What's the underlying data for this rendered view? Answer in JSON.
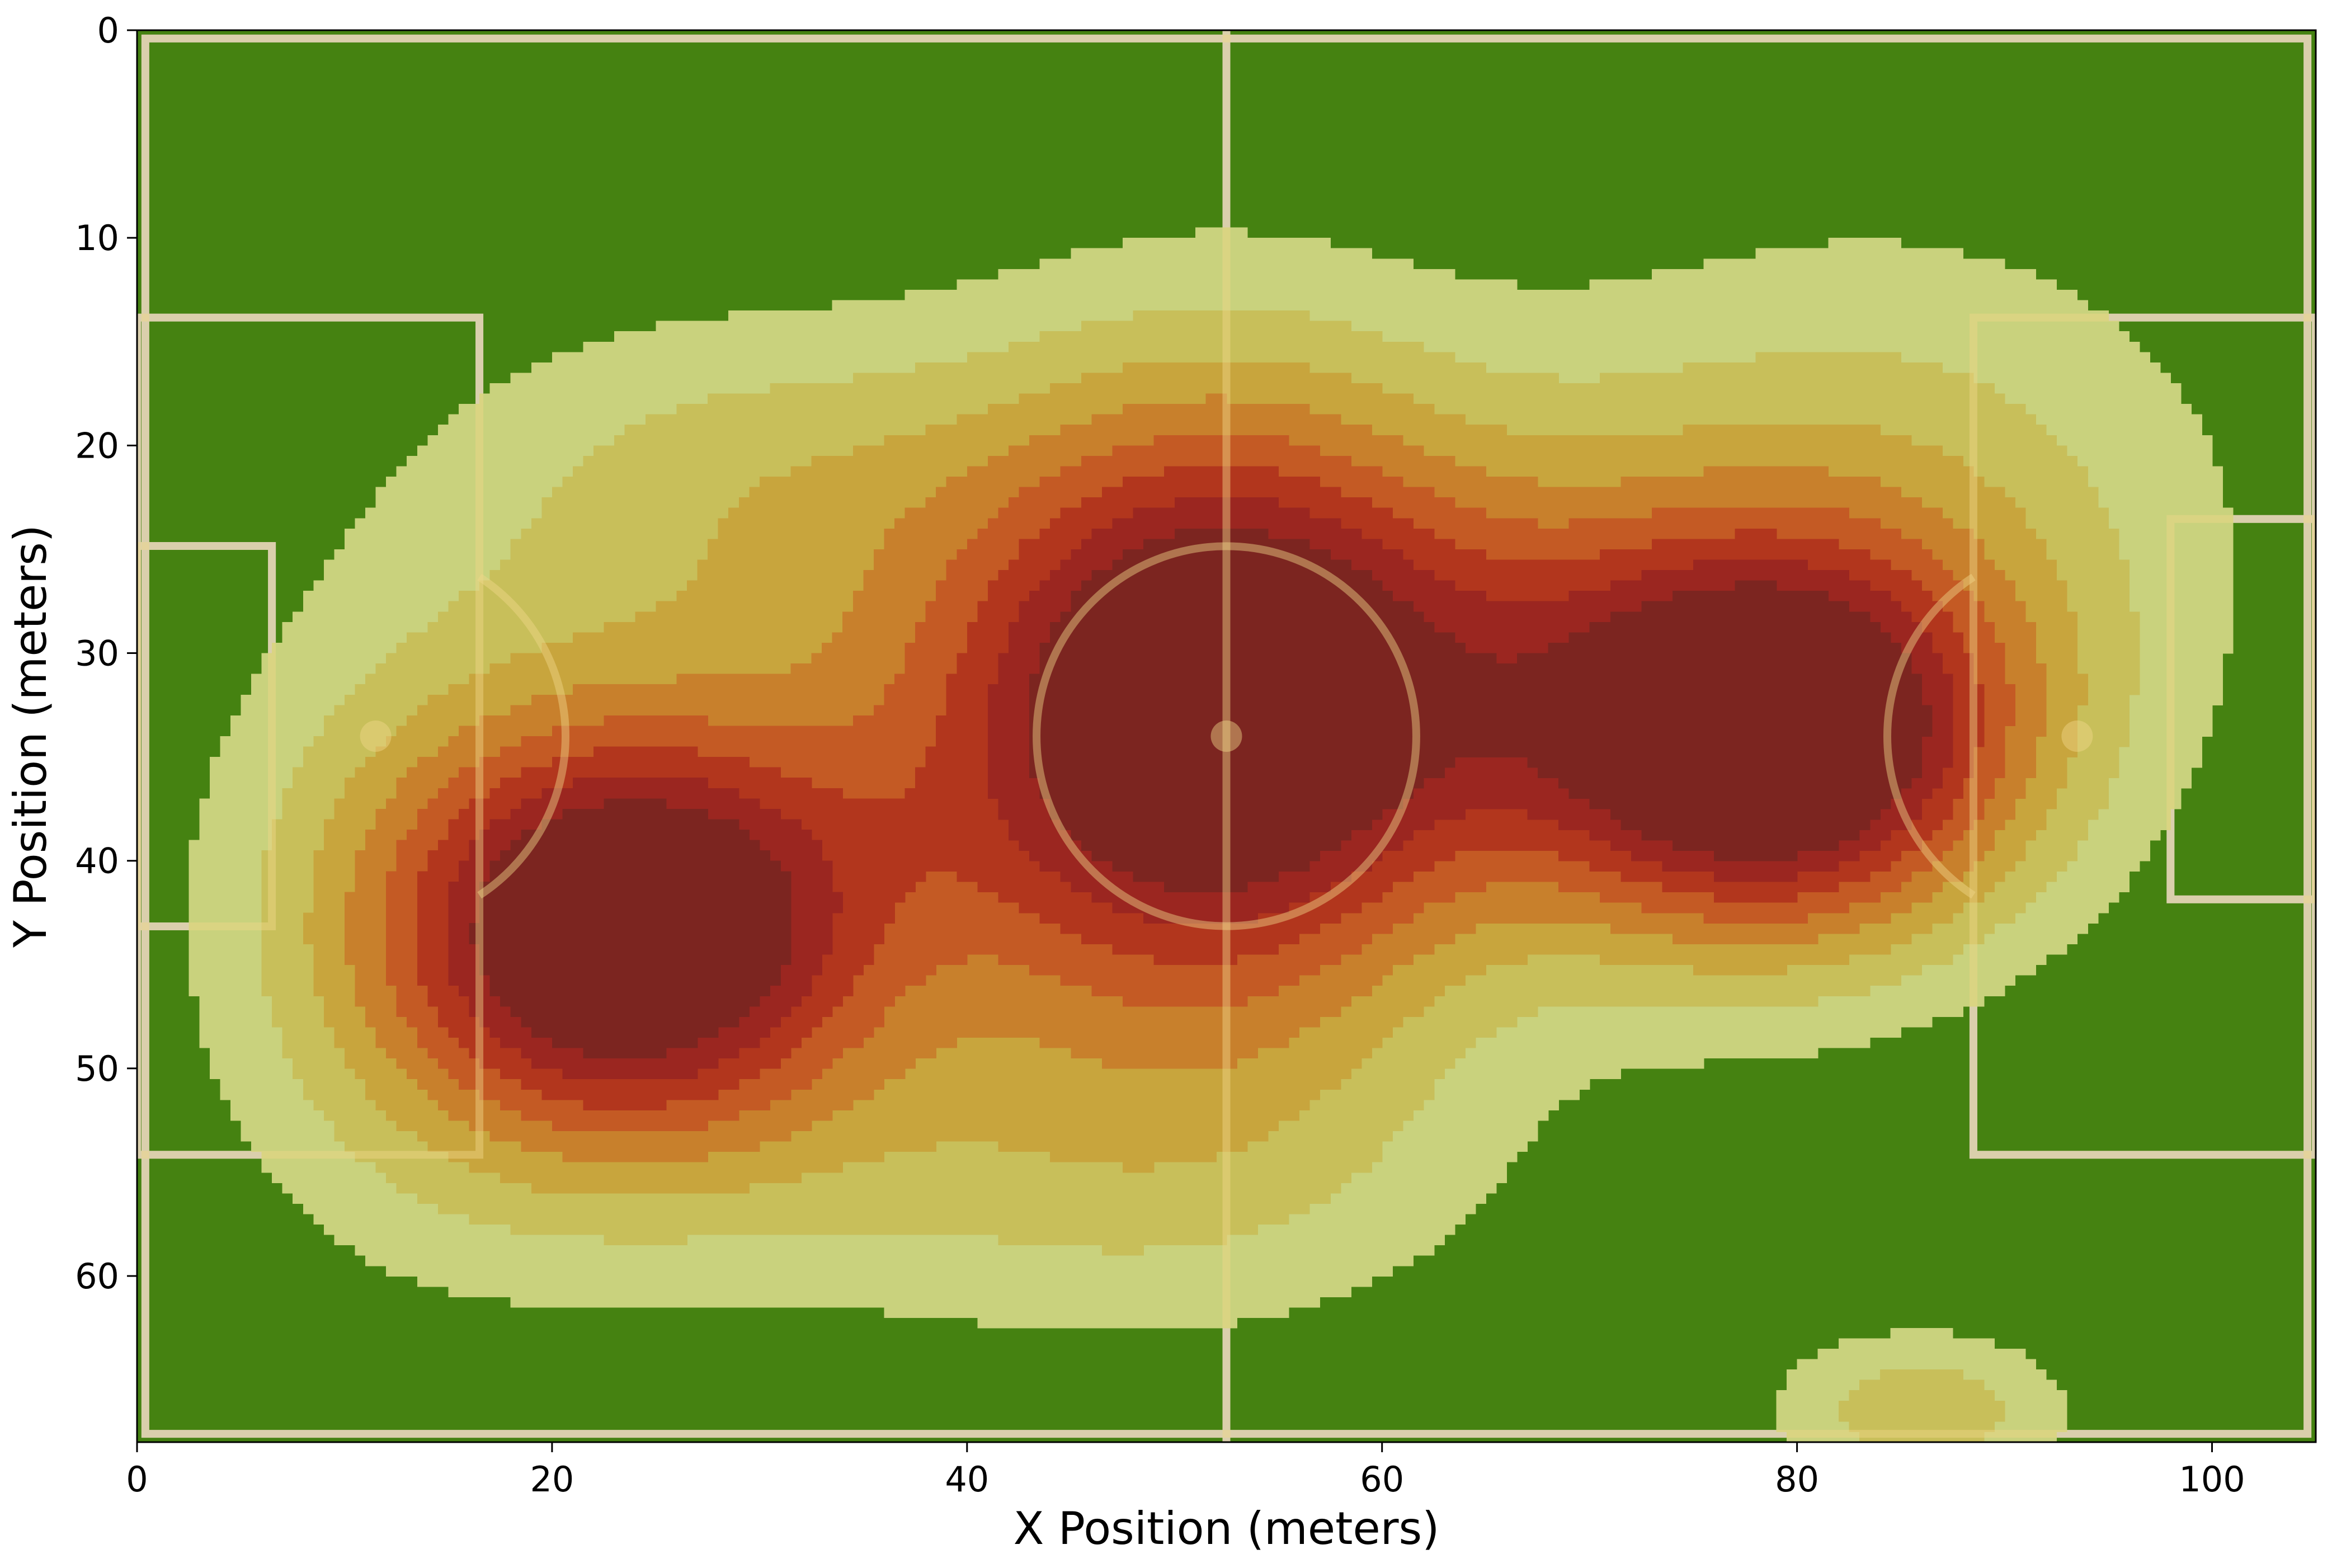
{
  "chart_data": {
    "type": "heatmap",
    "subtype": "kde-density-contour over football pitch",
    "title": "",
    "xlabel": "X Position (meters)",
    "ylabel": "Y Position (meters)",
    "xlim": [
      0,
      105
    ],
    "ylim": [
      68,
      0
    ],
    "y_inverted": true,
    "grid": false,
    "x_ticks": [
      0,
      20,
      40,
      60,
      80,
      100
    ],
    "y_ticks": [
      0,
      10,
      20,
      30,
      40,
      50,
      60
    ],
    "pitch": {
      "length": 105,
      "width": 68,
      "penalty_area_depth": 16.5,
      "penalty_area_top": 13.84,
      "penalty_area_bottom": 54.16,
      "goal_area_depth": 5.5,
      "goal_area_top": 24.84,
      "goal_area_bottom": 43.16,
      "center_circle_radius": 9.15,
      "penalty_spot_distance": 11,
      "colors": {
        "grass": "#458211",
        "lines": "#c8c8c8"
      }
    },
    "contour_levels": [
      {
        "level": 1,
        "color": "#c9d27d"
      },
      {
        "level": 2,
        "color": "#c8bf5a"
      },
      {
        "level": 3,
        "color": "#c8a53d"
      },
      {
        "level": 4,
        "color": "#c8802c"
      },
      {
        "level": 5,
        "color": "#c45a24"
      },
      {
        "level": 6,
        "color": "#b2361d"
      },
      {
        "level": 7,
        "color": "#9b2620"
      },
      {
        "level": 8,
        "color": "#7c2520"
      }
    ],
    "density_peaks": [
      {
        "x": 24,
        "y": 43.5,
        "rx": 8,
        "ry": 7,
        "weight": 1.0
      },
      {
        "x": 52,
        "y": 33,
        "rx": 9,
        "ry": 11,
        "weight": 1.0
      },
      {
        "x": 79,
        "y": 34.5,
        "rx": 8,
        "ry": 6.5,
        "weight": 1.0
      }
    ],
    "density_ridge": {
      "x1": 24,
      "y1": 44,
      "x2": 56,
      "y2": 24,
      "x3": 79,
      "y3": 34
    },
    "secondary_area": {
      "x": 86,
      "y": 66.5,
      "rx": 7,
      "ry": 3
    }
  }
}
